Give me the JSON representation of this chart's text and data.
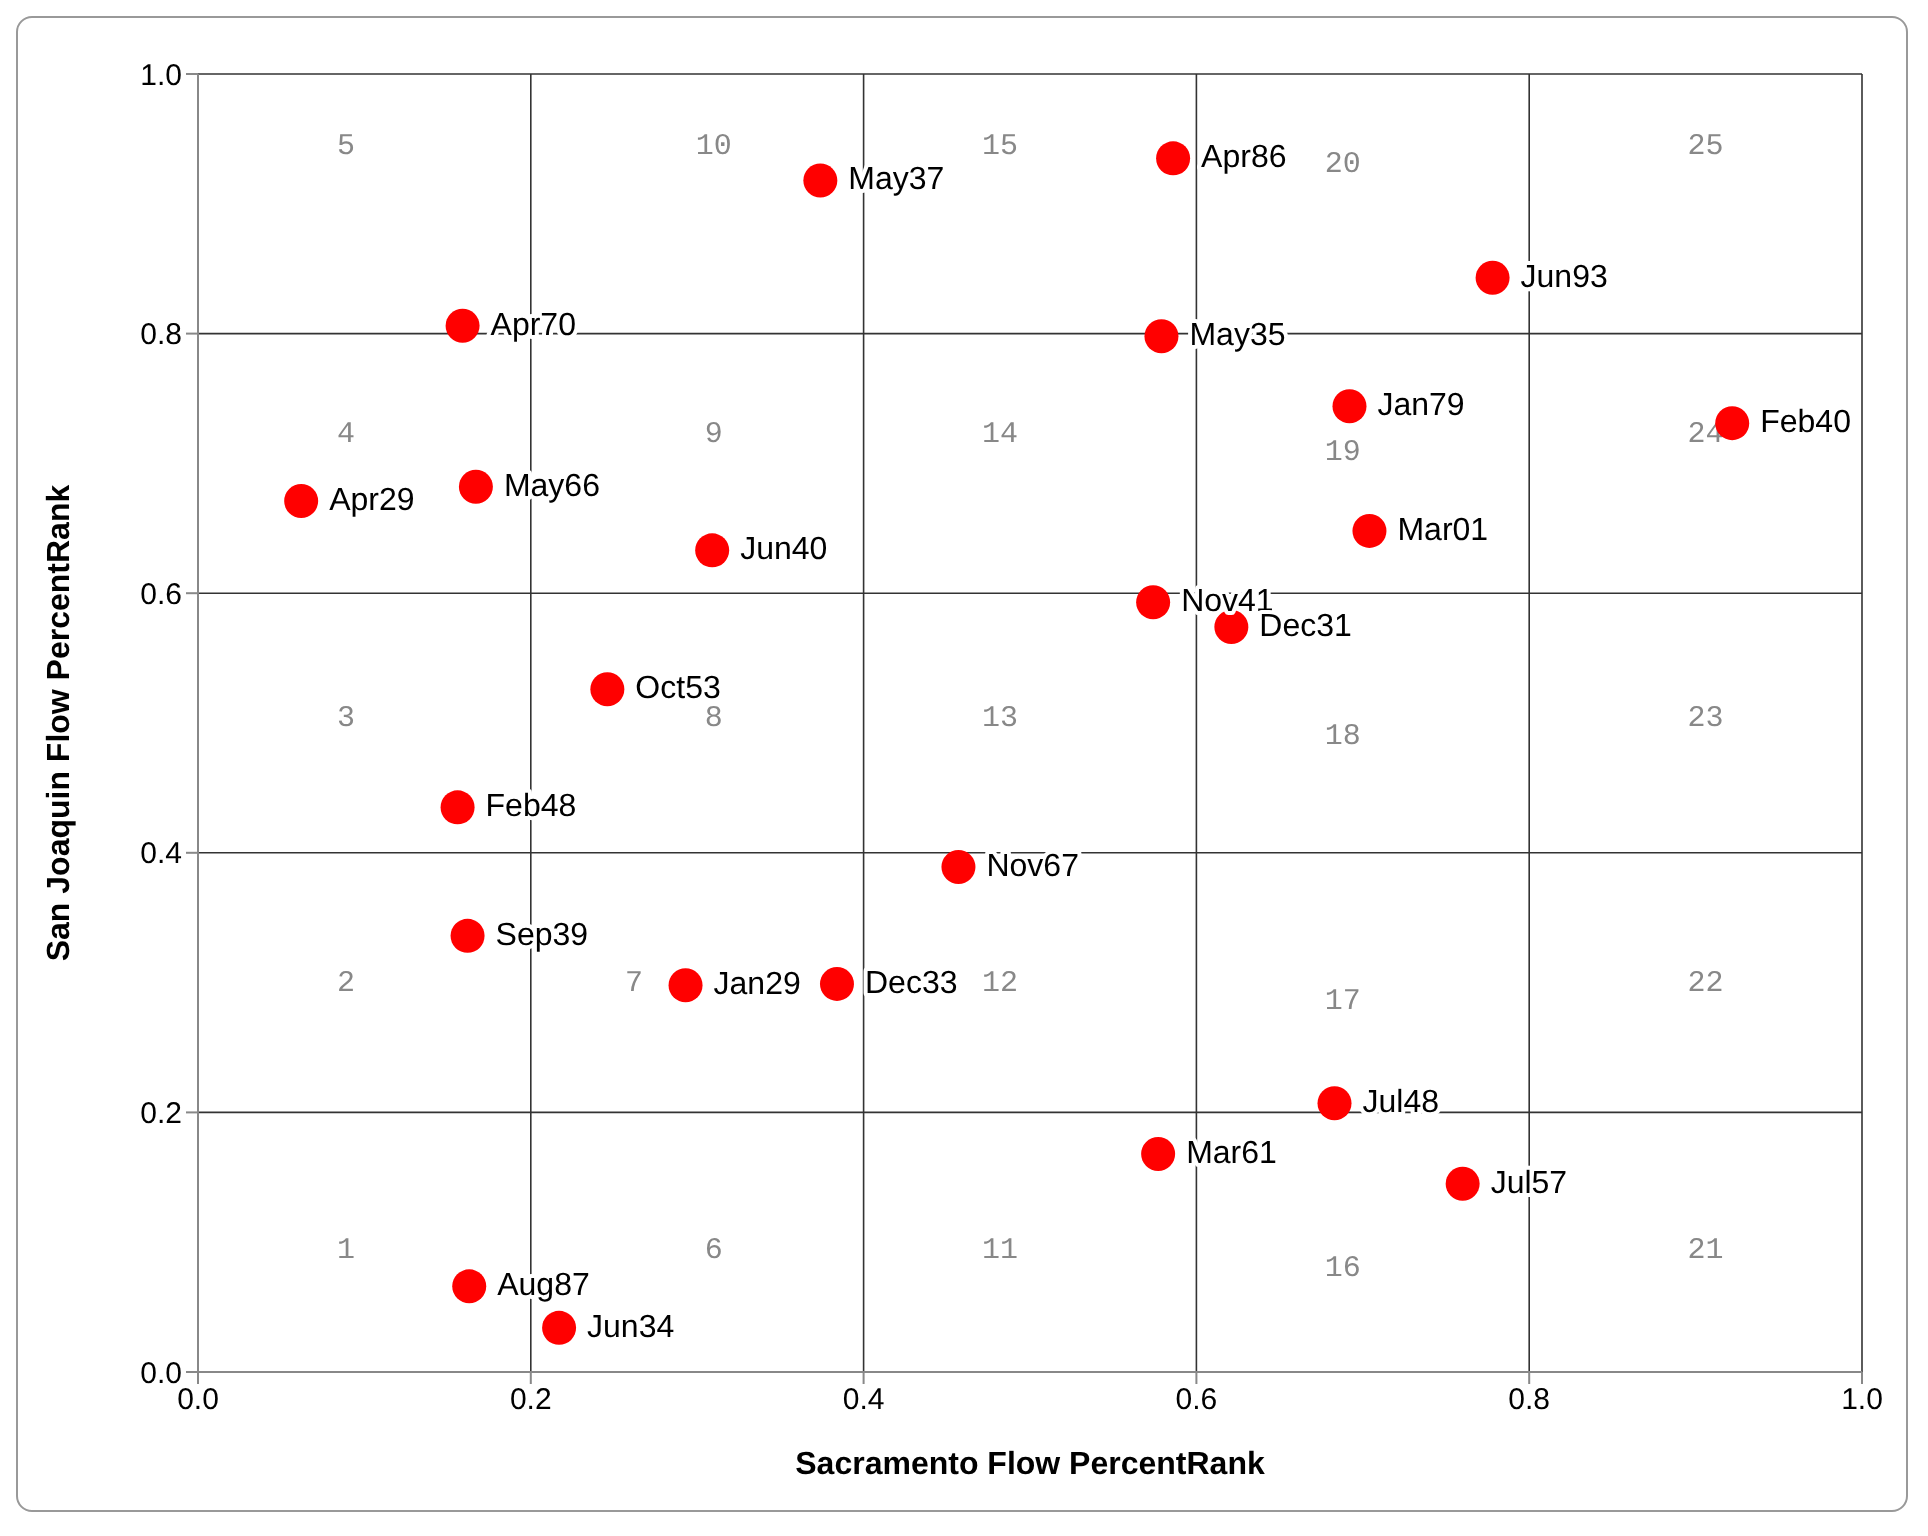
{
  "chart_data": {
    "type": "scatter",
    "xlabel": "Sacramento Flow PercentRank",
    "ylabel": "San Joaquin  Flow PercentRank",
    "x": [
      0.062,
      0.159,
      0.167,
      0.309,
      0.374,
      0.586,
      0.778,
      0.579,
      0.692,
      0.922,
      0.704,
      0.574,
      0.621,
      0.246,
      0.156,
      0.457,
      0.162,
      0.293,
      0.384,
      0.683,
      0.577,
      0.76,
      0.163,
      0.217
    ],
    "series": [
      {
        "color": "#ff0000",
        "values": [
          0.671,
          0.806,
          0.682,
          0.633,
          0.918,
          0.935,
          0.843,
          0.798,
          0.744,
          0.731,
          0.648,
          0.593,
          0.574,
          0.526,
          0.435,
          0.389,
          0.336,
          0.298,
          0.299,
          0.207,
          0.168,
          0.145,
          0.066,
          0.034
        ],
        "value_labels": [
          "Apr29",
          "Apr70",
          "May66",
          "Jun40",
          "May37",
          "Apr86",
          "Jun93",
          "May35",
          "Jan79",
          "Feb40",
          "Mar01",
          "Nov41",
          "Dec31",
          "Oct53",
          "Feb48",
          "Nov67",
          "Sep39",
          "Jan29",
          "Dec33",
          "Jul48",
          "Mar61",
          "Jul57",
          "Aug87",
          "Jun34"
        ]
      }
    ],
    "marker": "circle",
    "grid": true,
    "legend": false,
    "xlim": [
      0,
      1
    ],
    "ylim": [
      0,
      1
    ],
    "xticks": [
      {
        "value": 0,
        "label": "0.0"
      },
      {
        "value": 0.2,
        "label": "0.2"
      },
      {
        "value": 0.4,
        "label": "0.4"
      },
      {
        "value": 0.6,
        "label": "0.6"
      },
      {
        "value": 0.8,
        "label": "0.8"
      },
      {
        "value": 1,
        "label": "1.0"
      }
    ],
    "yticks": [
      {
        "value": 0,
        "label": "0.0"
      },
      {
        "value": 0.2,
        "label": "0.2"
      },
      {
        "value": 0.4,
        "label": "0.4"
      },
      {
        "value": 0.6,
        "label": "0.6"
      },
      {
        "value": 0.8,
        "label": "0.8"
      },
      {
        "value": 1,
        "label": "1.0"
      }
    ],
    "annotations": [
      "1",
      "2",
      "3",
      "4",
      "5",
      "6",
      "7",
      "8",
      "9",
      "10",
      "11",
      "12",
      "13",
      "14",
      "15",
      "16",
      "17",
      "18",
      "19",
      "20",
      "21",
      "22",
      "23",
      "24",
      "25"
    ]
  }
}
